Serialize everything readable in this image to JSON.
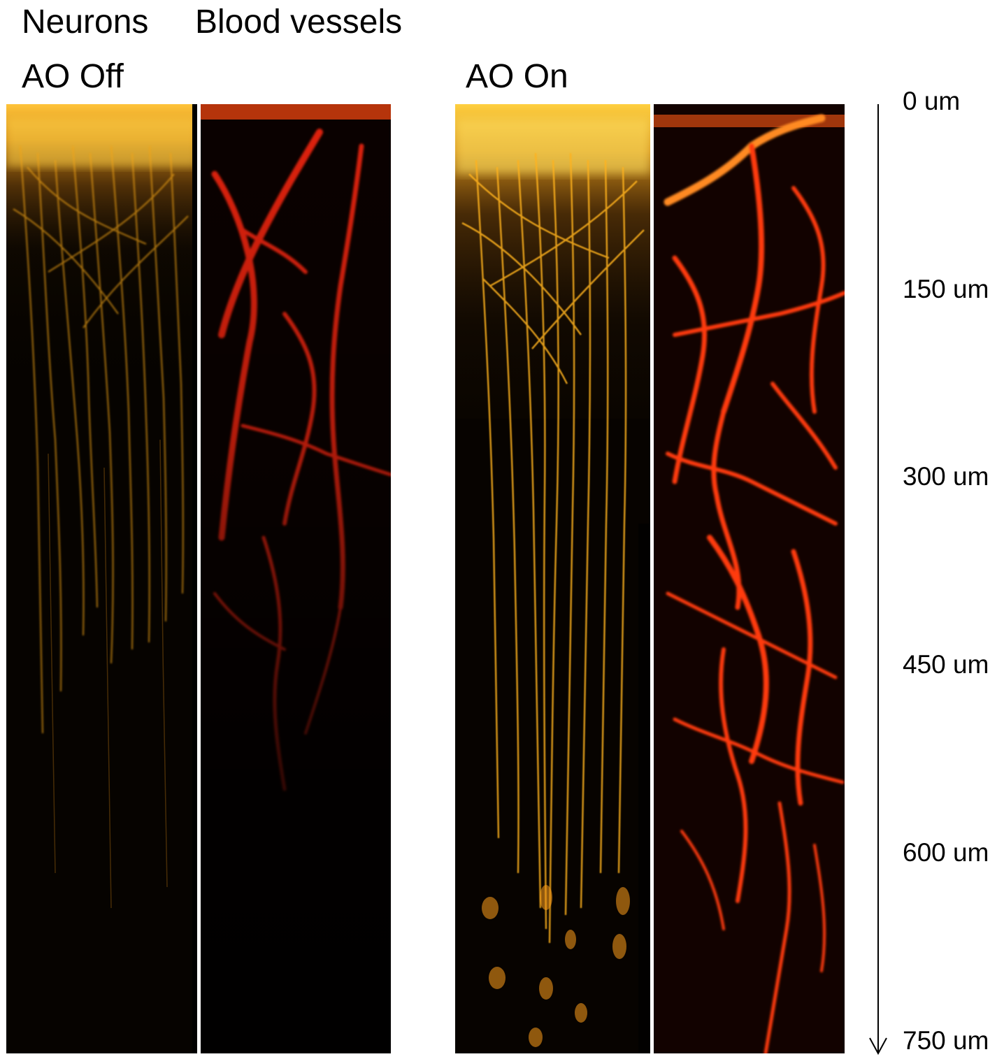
{
  "headers": {
    "neurons": "Neurons",
    "blood_vessels": "Blood vessels",
    "ao_off": "AO Off",
    "ao_on": "AO On"
  },
  "depth_axis": {
    "ticks": [
      "0 um",
      "150 um",
      "300 um",
      "450 um",
      "600 um",
      "750 um"
    ]
  },
  "panels": [
    {
      "condition": "AO Off",
      "channel": "Neurons",
      "color": "#f2a419"
    },
    {
      "condition": "AO Off",
      "channel": "Blood vessels",
      "color": "#d8160c"
    },
    {
      "condition": "AO On",
      "channel": "Neurons",
      "color": "#ffb21f"
    },
    {
      "condition": "AO On",
      "channel": "Blood vessels",
      "color": "#ff3a10"
    }
  ]
}
